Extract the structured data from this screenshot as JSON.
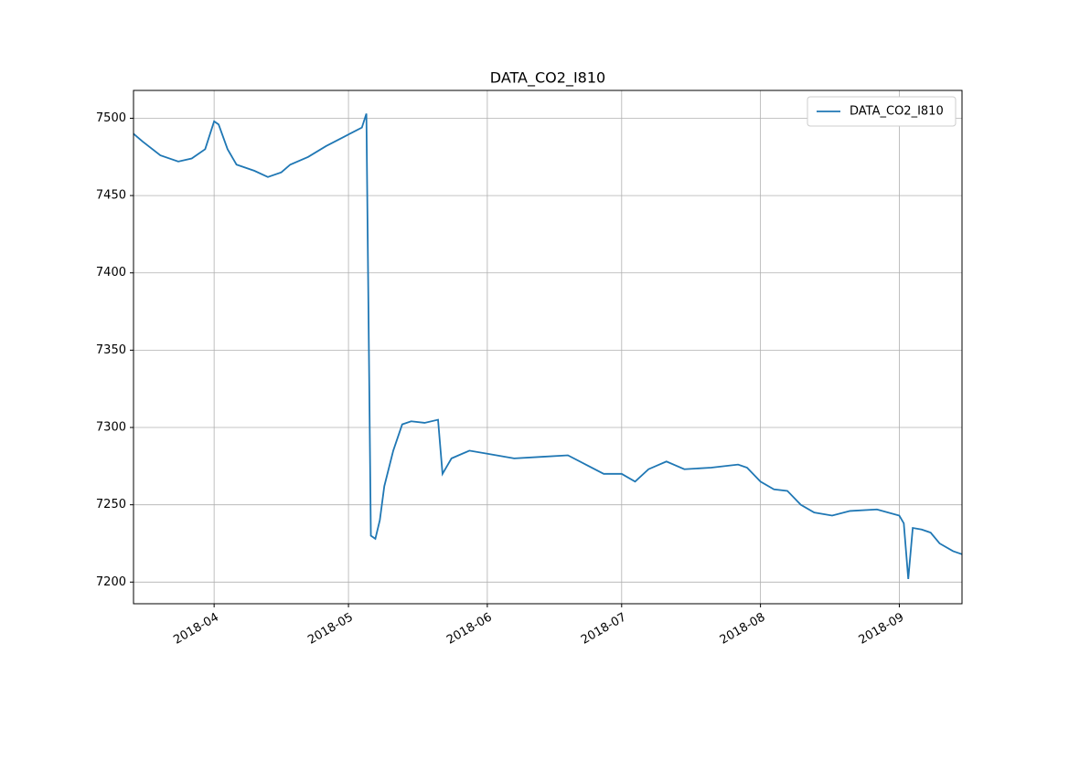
{
  "chart_data": {
    "type": "line",
    "title": "DATA_CO2_I810",
    "x": [
      "2018-03-14",
      "2018-03-16",
      "2018-03-20",
      "2018-03-24",
      "2018-03-27",
      "2018-03-30",
      "2018-04-01",
      "2018-04-02",
      "2018-04-04",
      "2018-04-06",
      "2018-04-10",
      "2018-04-13",
      "2018-04-16",
      "2018-04-18",
      "2018-04-22",
      "2018-04-26",
      "2018-04-30",
      "2018-05-02",
      "2018-05-04",
      "2018-05-05",
      "2018-05-06",
      "2018-05-07",
      "2018-05-08",
      "2018-05-09",
      "2018-05-11",
      "2018-05-13",
      "2018-05-15",
      "2018-05-18",
      "2018-05-21",
      "2018-05-22",
      "2018-05-24",
      "2018-05-28",
      "2018-06-01",
      "2018-06-07",
      "2018-06-13",
      "2018-06-19",
      "2018-06-23",
      "2018-06-27",
      "2018-07-01",
      "2018-07-04",
      "2018-07-07",
      "2018-07-11",
      "2018-07-15",
      "2018-07-21",
      "2018-07-27",
      "2018-07-29",
      "2018-08-01",
      "2018-08-04",
      "2018-08-07",
      "2018-08-10",
      "2018-08-13",
      "2018-08-17",
      "2018-08-21",
      "2018-08-27",
      "2018-09-01",
      "2018-09-02",
      "2018-09-03",
      "2018-09-04",
      "2018-09-06",
      "2018-09-08",
      "2018-09-10",
      "2018-09-13",
      "2018-09-15"
    ],
    "series": [
      {
        "name": "DATA_CO2_I810",
        "color": "#1f77b4",
        "values": [
          7490,
          7485,
          7476,
          7472,
          7474,
          7480,
          7498,
          7496,
          7480,
          7470,
          7466,
          7462,
          7465,
          7470,
          7475,
          7482,
          7488,
          7491,
          7494,
          7503,
          7230,
          7228,
          7240,
          7262,
          7285,
          7302,
          7304,
          7303,
          7305,
          7270,
          7280,
          7285,
          7283,
          7280,
          7281,
          7282,
          7276,
          7270,
          7270,
          7265,
          7273,
          7278,
          7273,
          7274,
          7276,
          7274,
          7265,
          7260,
          7259,
          7250,
          7245,
          7243,
          7246,
          7247,
          7243,
          7238,
          7202,
          7235,
          7234,
          7232,
          7225,
          7220,
          7218
        ]
      }
    ],
    "xlim": [
      "2018-03-14",
      "2018-09-15"
    ],
    "xticks": [
      {
        "value": "2018-04-01",
        "label": "2018-04"
      },
      {
        "value": "2018-05-01",
        "label": "2018-05"
      },
      {
        "value": "2018-06-01",
        "label": "2018-06"
      },
      {
        "value": "2018-07-01",
        "label": "2018-07"
      },
      {
        "value": "2018-08-01",
        "label": "2018-08"
      },
      {
        "value": "2018-09-01",
        "label": "2018-09"
      }
    ],
    "ylim": [
      7186,
      7518
    ],
    "yticks": [
      7200,
      7250,
      7300,
      7350,
      7400,
      7450,
      7500
    ],
    "grid": true,
    "legend": "upper right"
  }
}
